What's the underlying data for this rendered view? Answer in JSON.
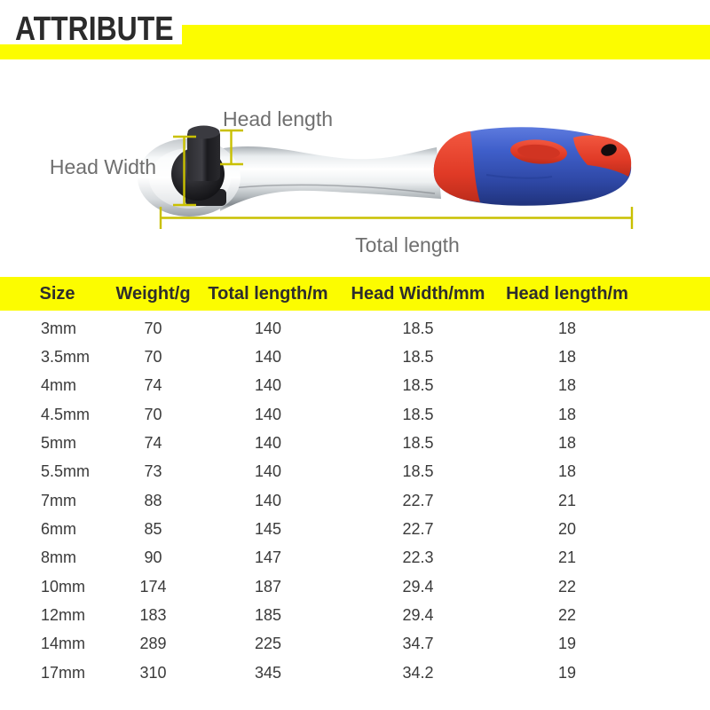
{
  "header": {
    "title": "ATTRIBUTE"
  },
  "colors": {
    "banner_yellow": "#FCFC00",
    "table_header_yellow": "#FCFC00",
    "dimension_line": "#C9C000",
    "diagram_label_gray": "#6F6F6F",
    "handle_blue": "#3F5FCA",
    "handle_red": "#E03A26",
    "title_text": "#2B2B2B",
    "table_text": "#3A3A3A"
  },
  "diagram": {
    "product": "ratchet-wrench",
    "labels": {
      "head_length": "Head length",
      "head_width": "Head Width",
      "total_length": "Total length"
    }
  },
  "table": {
    "columns": [
      "Size",
      "Weight/g",
      "Total length/m",
      "Head Width/mm",
      "Head length/m"
    ],
    "rows": [
      [
        "3mm",
        "70",
        "140",
        "18.5",
        "18"
      ],
      [
        "3.5mm",
        "70",
        "140",
        "18.5",
        "18"
      ],
      [
        "4mm",
        "74",
        "140",
        "18.5",
        "18"
      ],
      [
        "4.5mm",
        "70",
        "140",
        "18.5",
        "18"
      ],
      [
        "5mm",
        "74",
        "140",
        "18.5",
        "18"
      ],
      [
        "5.5mm",
        "73",
        "140",
        "18.5",
        "18"
      ],
      [
        "7mm",
        "88",
        "140",
        "22.7",
        "21"
      ],
      [
        "6mm",
        "85",
        "145",
        "22.7",
        "20"
      ],
      [
        "8mm",
        "90",
        "147",
        "22.3",
        "21"
      ],
      [
        "10mm",
        "174",
        "187",
        "29.4",
        "22"
      ],
      [
        "12mm",
        "183",
        "185",
        "29.4",
        "22"
      ],
      [
        "14mm",
        "289",
        "225",
        "34.7",
        "19"
      ],
      [
        "17mm",
        "310",
        "345",
        "34.2",
        "19"
      ]
    ]
  }
}
